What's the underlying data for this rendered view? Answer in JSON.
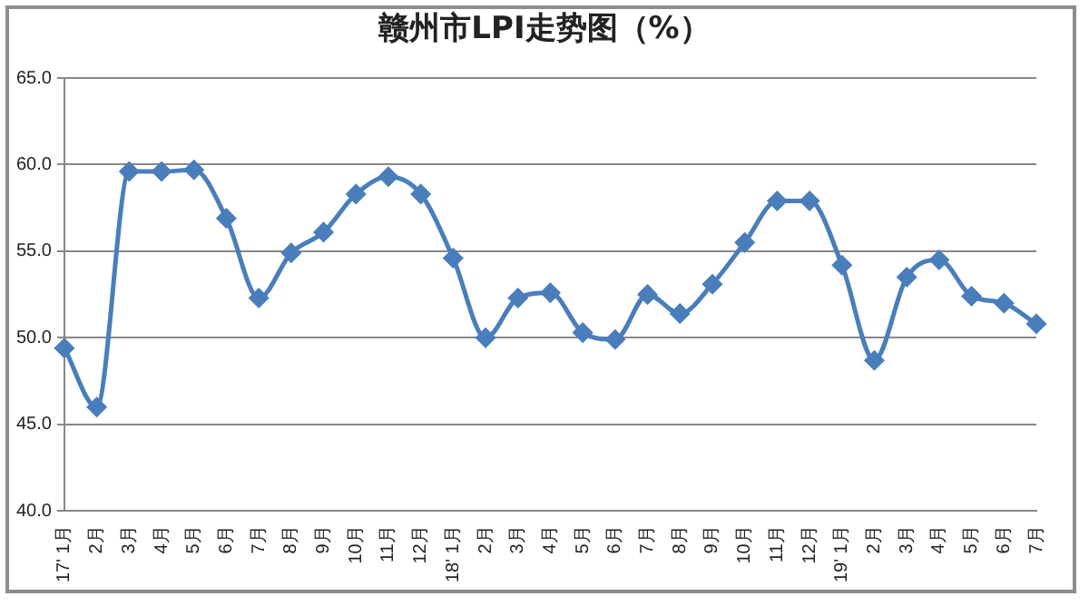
{
  "chart_data": {
    "type": "line",
    "title": "赣州市LPI走势图（%）",
    "categories": [
      "17' 1月",
      "2月",
      "3月",
      "4月",
      "5月",
      "6月",
      "7月",
      "8月",
      "9月",
      "10月",
      "11月",
      "12月",
      "18' 1月",
      "2月",
      "3月",
      "4月",
      "5月",
      "6月",
      "7月",
      "8月",
      "9月",
      "10月",
      "11月",
      "12月",
      "19' 1月",
      "2月",
      "3月",
      "4月",
      "5月",
      "6月",
      "7月"
    ],
    "series": [
      {
        "color": "#4a7ebb",
        "values": [
          49.4,
          46.0,
          59.6,
          59.6,
          59.7,
          56.9,
          52.3,
          54.9,
          56.1,
          58.3,
          59.3,
          58.3,
          54.6,
          50.0,
          52.3,
          52.6,
          50.3,
          49.9,
          52.5,
          51.4,
          53.1,
          55.5,
          57.9,
          57.9,
          54.2,
          48.7,
          53.5,
          54.5,
          52.4,
          52.0,
          50.8
        ]
      }
    ],
    "ylim": [
      40,
      65
    ],
    "yticks": [
      {
        "value": 40,
        "label": "40.0"
      },
      {
        "value": 45,
        "label": "45.0"
      },
      {
        "value": 50,
        "label": "50.0"
      },
      {
        "value": 55,
        "label": "55.0"
      },
      {
        "value": 60,
        "label": "60.0"
      },
      {
        "value": 65,
        "label": "65.0"
      }
    ],
    "grid": "y",
    "legend": false,
    "marker": "diamond",
    "line_style": "solid"
  }
}
